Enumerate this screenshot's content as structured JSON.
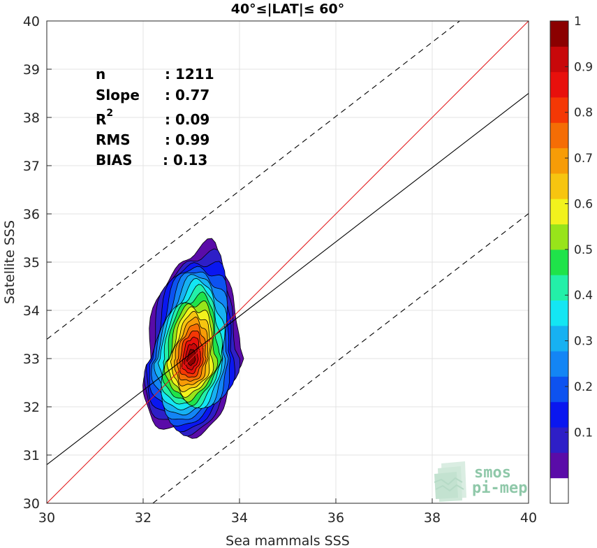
{
  "chart_data": {
    "type": "contour-scatter",
    "title": "40°≤|LAT|≤ 60°",
    "xlabel": "Sea mammals SSS",
    "ylabel": "Satellite SSS",
    "xlim": [
      30,
      40
    ],
    "ylim": [
      30,
      40
    ],
    "xticks": [
      30,
      32,
      34,
      36,
      38,
      40
    ],
    "yticks": [
      30,
      31,
      32,
      33,
      34,
      35,
      36,
      37,
      38,
      39,
      40
    ],
    "grid": true,
    "stats": [
      {
        "label": "n",
        "value": ": 1211"
      },
      {
        "label": "Slope",
        "value": ": 0.77"
      },
      {
        "label": "R",
        "sup": "2",
        "value": ": 0.09"
      },
      {
        "label": "RMS",
        "value": ": 0.99"
      },
      {
        "label": "BIAS",
        "value": ": 0.13"
      }
    ],
    "density_center": {
      "x": 33.0,
      "y": 33.0
    },
    "density_peak": 1.0,
    "density_extent_x": [
      32.0,
      34.0
    ],
    "density_extent_y": [
      31.4,
      35.3
    ],
    "lines": {
      "one_to_one": {
        "slope": 1.0,
        "intercept": 0.0,
        "color": "#e31a1c",
        "style": "solid"
      },
      "regression": {
        "slope": 0.77,
        "x_start": 30,
        "y_start": 30.8,
        "color": "#000000",
        "style": "solid"
      },
      "upper_bound": {
        "slope": 0.77,
        "x_start": 30,
        "y_start": 33.4,
        "color": "#000000",
        "style": "dashed"
      },
      "lower_bound": {
        "slope": 0.77,
        "x_start": 32.2,
        "y_start": 30.0,
        "color": "#000000",
        "style": "dashed"
      }
    },
    "colorbar": {
      "range": [
        0,
        1
      ],
      "ticks": [
        0.1,
        0.2,
        0.3,
        0.4,
        0.5,
        0.6,
        0.7,
        0.8,
        0.9,
        1
      ],
      "tick_labels": [
        "0.1",
        "0.2",
        "0.3",
        "0.4",
        "0.5",
        "0.6",
        "0.7",
        "0.8",
        "0.9",
        "1"
      ],
      "colors": [
        "#ffffff",
        "#5a0ca8",
        "#2e1fc7",
        "#0a17f0",
        "#0d52f0",
        "#1385f5",
        "#17b1f2",
        "#14e6f3",
        "#23f0a8",
        "#1fe34a",
        "#98e41a",
        "#f2f21d",
        "#f7c510",
        "#f79c07",
        "#f56d05",
        "#f53805",
        "#e8100c",
        "#c8080a",
        "#8b0000"
      ]
    }
  },
  "logo": {
    "line1": "smos",
    "line2": "pi-mep"
  }
}
